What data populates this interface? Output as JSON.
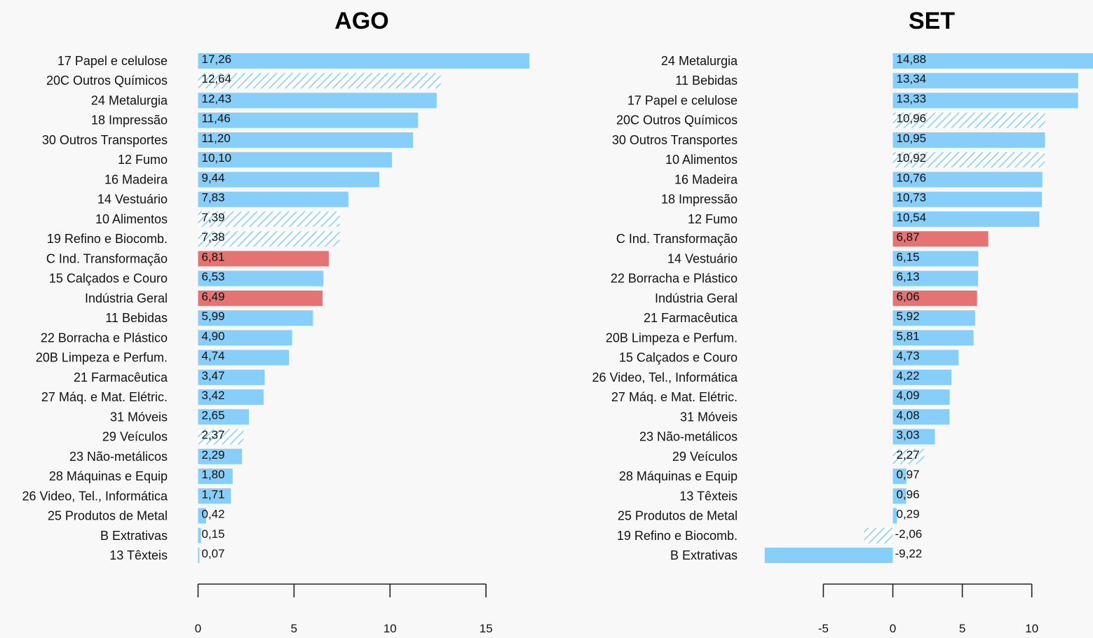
{
  "colors": {
    "bar": "#87cefa",
    "highlight": "#e57373",
    "hatch_stroke": "#87cefa",
    "hatch_bg": "#ffffff"
  },
  "chart_data": [
    {
      "type": "bar",
      "orientation": "horizontal",
      "title": "AGO",
      "xlim": [
        0,
        17.26
      ],
      "xticks": [
        0,
        5,
        10,
        15
      ],
      "grid": false,
      "categories": [
        "17  Papel e celulose",
        "20C  Outros Químicos",
        "24  Metalurgia",
        "18  Impressão",
        "30  Outros Transportes",
        "12  Fumo",
        "16  Madeira",
        "14  Vestuário",
        "10  Alimentos",
        "19  Refino e Biocomb.",
        "C  Ind. Transformação",
        "15  Calçados e Couro",
        "Indústria Geral",
        "11  Bebidas",
        "22  Borracha e Plástico",
        "20B  Limpeza e Perfum.",
        "21  Farmacêutica",
        "27  Máq. e Mat. Elétric.",
        "31  Móveis",
        "29  Veículos",
        "23  Não-metálicos",
        "28  Máquinas e Equip",
        "26  Video, Tel., Informática",
        "25  Produtos de Metal",
        "B  Extrativas",
        "13  Têxteis"
      ],
      "values": [
        17.26,
        12.64,
        12.43,
        11.46,
        11.2,
        10.1,
        9.44,
        7.83,
        7.39,
        7.38,
        6.81,
        6.53,
        6.49,
        5.99,
        4.9,
        4.74,
        3.47,
        3.42,
        2.65,
        2.37,
        2.29,
        1.8,
        1.71,
        0.42,
        0.15,
        0.07
      ],
      "value_labels": [
        "17,26",
        "12,64",
        "12,43",
        "11,46",
        "11,20",
        "10,10",
        "9,44",
        "7,83",
        "7,39",
        "7,38",
        "6,81",
        "6,53",
        "6,49",
        "5,99",
        "4,90",
        "4,74",
        "3,47",
        "3,42",
        "2,65",
        "2,37",
        "2,29",
        "1,80",
        "1,71",
        "0,42",
        "0,15",
        "0,07"
      ],
      "styles": [
        "solid",
        "hatched",
        "solid",
        "solid",
        "solid",
        "solid",
        "solid",
        "solid",
        "hatched",
        "hatched",
        "highlight",
        "solid",
        "highlight",
        "solid",
        "solid",
        "solid",
        "solid",
        "solid",
        "solid",
        "hatched",
        "solid",
        "solid",
        "solid",
        "solid",
        "solid",
        "solid"
      ]
    },
    {
      "type": "bar",
      "orientation": "horizontal",
      "title": "SET",
      "xlim": [
        -9.22,
        14.88
      ],
      "xticks": [
        -5,
        0,
        5,
        10
      ],
      "grid": false,
      "categories": [
        "24  Metalurgia",
        "11  Bebidas",
        "17  Papel e celulose",
        "20C  Outros Químicos",
        "30  Outros Transportes",
        "10  Alimentos",
        "16  Madeira",
        "18  Impressão",
        "12  Fumo",
        "C  Ind. Transformação",
        "14  Vestuário",
        "22  Borracha e Plástico",
        "Indústria Geral",
        "21  Farmacêutica",
        "20B  Limpeza e Perfum.",
        "15  Calçados e Couro",
        "26  Video, Tel., Informática",
        "27  Máq. e Mat. Elétric.",
        "31  Móveis",
        "23  Não-metálicos",
        "29  Veículos",
        "28  Máquinas e Equip",
        "13  Têxteis",
        "25  Produtos de Metal",
        "19  Refino e Biocomb.",
        "B  Extrativas"
      ],
      "values": [
        14.88,
        13.34,
        13.33,
        10.96,
        10.95,
        10.92,
        10.76,
        10.73,
        10.54,
        6.87,
        6.15,
        6.13,
        6.06,
        5.92,
        5.81,
        4.73,
        4.22,
        4.09,
        4.08,
        3.03,
        2.27,
        0.97,
        0.96,
        0.29,
        -2.06,
        -9.22
      ],
      "value_labels": [
        "14,88",
        "13,34",
        "13,33",
        "10,96",
        "10,95",
        "10,92",
        "10,76",
        "10,73",
        "10,54",
        "6,87",
        "6,15",
        "6,13",
        "6,06",
        "5,92",
        "5,81",
        "4,73",
        "4,22",
        "4,09",
        "4,08",
        "3,03",
        "2,27",
        "0,97",
        "0,96",
        "0,29",
        "-2,06",
        "-9,22"
      ],
      "styles": [
        "solid",
        "solid",
        "solid",
        "hatched",
        "solid",
        "hatched",
        "solid",
        "solid",
        "solid",
        "highlight",
        "solid",
        "solid",
        "highlight",
        "solid",
        "solid",
        "solid",
        "solid",
        "solid",
        "solid",
        "solid",
        "hatched",
        "solid",
        "solid",
        "solid",
        "hatched",
        "solid"
      ]
    }
  ]
}
